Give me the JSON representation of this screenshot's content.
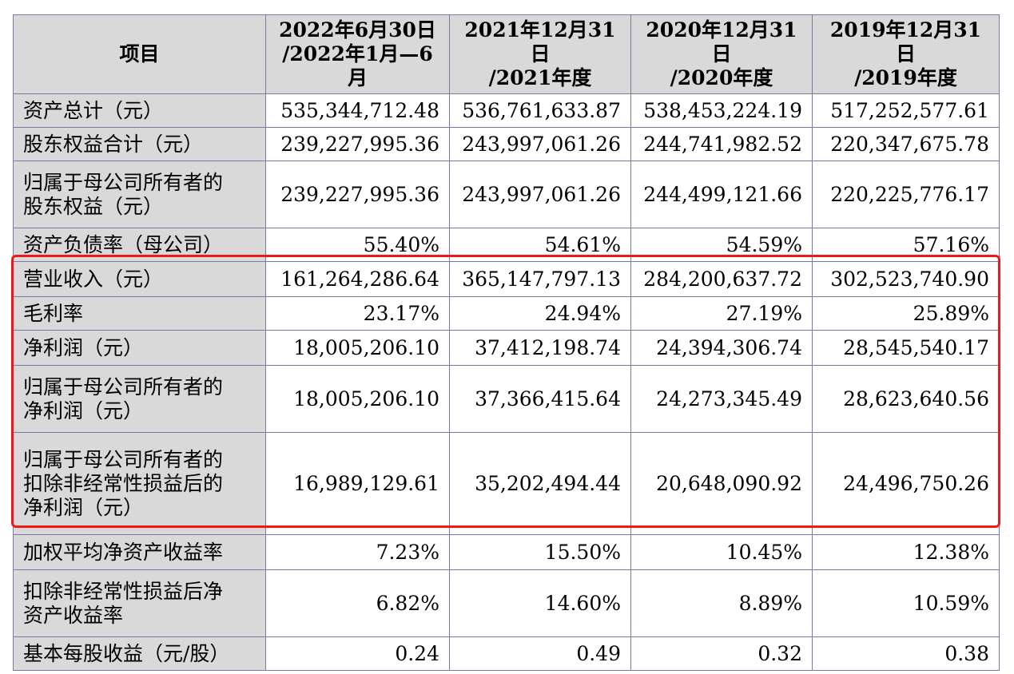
{
  "header": {
    "item": "项目",
    "periods": [
      {
        "line1": "2022年6月30日",
        "line2": "/2022年1月—6月"
      },
      {
        "line1": "2021年12月31日",
        "line2": "/2021年度"
      },
      {
        "line1": "2020年12月31日",
        "line2": "/2020年度"
      },
      {
        "line1": "2019年12月31日",
        "line2": "/2019年度"
      }
    ]
  },
  "rows": [
    {
      "label": [
        "资产总计（元）"
      ],
      "values": [
        "535,344,712.48",
        "536,761,633.87",
        "538,453,224.19",
        "517,252,577.61"
      ]
    },
    {
      "label": [
        "股东权益合计（元）"
      ],
      "values": [
        "239,227,995.36",
        "243,997,061.26",
        "244,741,982.52",
        "220,347,675.78"
      ]
    },
    {
      "label": [
        "归属于母公司所有者的",
        "股东权益（元）"
      ],
      "values": [
        "239,227,995.36",
        "243,997,061.26",
        "244,499,121.66",
        "220,225,776.17"
      ]
    },
    {
      "label": [
        "资产负债率（母公司）"
      ],
      "values": [
        "55.40%",
        "54.61%",
        "54.59%",
        "57.16%"
      ]
    },
    {
      "label": [
        "营业收入（元）"
      ],
      "values": [
        "161,264,286.64",
        "365,147,797.13",
        "284,200,637.72",
        "302,523,740.90"
      ]
    },
    {
      "label": [
        "毛利率"
      ],
      "values": [
        "23.17%",
        "24.94%",
        "27.19%",
        "25.89%"
      ]
    },
    {
      "label": [
        "净利润（元）"
      ],
      "values": [
        "18,005,206.10",
        "37,412,198.74",
        "24,394,306.74",
        "28,545,540.17"
      ]
    },
    {
      "label": [
        "归属于母公司所有者的",
        "净利润（元）"
      ],
      "values": [
        "18,005,206.10",
        "37,366,415.64",
        "24,273,345.49",
        "28,623,640.56"
      ]
    },
    {
      "label": [
        "归属于母公司所有者的",
        "扣除非经常性损益后的",
        "净利润（元）"
      ],
      "values": [
        "16,989,129.61",
        "35,202,494.44",
        "20,648,090.92",
        "24,496,750.26"
      ]
    },
    {
      "label": [
        "加权平均净资产收益率"
      ],
      "values": [
        "7.23%",
        "15.50%",
        "10.45%",
        "12.38%"
      ]
    },
    {
      "label": [
        "扣除非经常性损益后净",
        "资产收益率"
      ],
      "values": [
        "6.82%",
        "14.60%",
        "8.89%",
        "10.59%"
      ]
    },
    {
      "label": [
        "基本每股收益（元/股）"
      ],
      "values": [
        "0.24",
        "0.49",
        "0.32",
        "0.38"
      ]
    }
  ],
  "highlight_color": "#f01919"
}
